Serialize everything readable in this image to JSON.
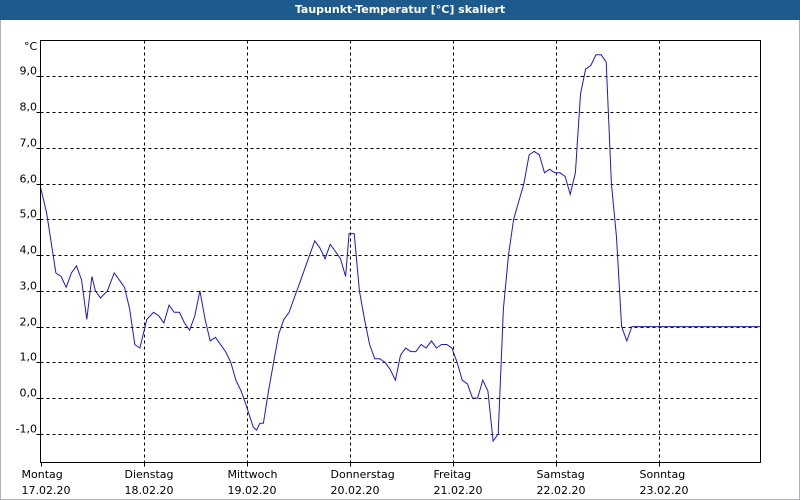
{
  "window": {
    "title": "Taupunkt-Temperatur [°C] skaliert"
  },
  "colors": {
    "title_bar": "#1d5b8e",
    "series_line": "#1a1ac8",
    "grid": "#000000"
  },
  "chart_data": {
    "type": "line",
    "title": "Taupunkt-Temperatur [°C] skaliert",
    "ylabel": "°C",
    "ylim": [
      -1.8,
      10.0
    ],
    "yticks": [
      {
        "value": 9.0,
        "label": "9,0"
      },
      {
        "value": 8.0,
        "label": "8,0"
      },
      {
        "value": 7.0,
        "label": "7,0"
      },
      {
        "value": 6.0,
        "label": "6,0"
      },
      {
        "value": 5.0,
        "label": "5,0"
      },
      {
        "value": 4.0,
        "label": "4,0"
      },
      {
        "value": 3.0,
        "label": "3,0"
      },
      {
        "value": 2.0,
        "label": "2,0"
      },
      {
        "value": 1.0,
        "label": "1,0"
      },
      {
        "value": 0.0,
        "label": "0,0"
      },
      {
        "value": -1.0,
        "label": "-1,0"
      }
    ],
    "xlim": [
      "17.02.20 00:00",
      "24.02.20 00:00"
    ],
    "xticks": [
      {
        "day": "Montag",
        "date": "17.02.20"
      },
      {
        "day": "Dienstag",
        "date": "18.02.20"
      },
      {
        "day": "Mittwoch",
        "date": "19.02.20"
      },
      {
        "day": "Donnerstag",
        "date": "20.02.20"
      },
      {
        "day": "Freitag",
        "date": "21.02.20"
      },
      {
        "day": "Samstag",
        "date": "22.02.20"
      },
      {
        "day": "Sonntag",
        "date": "23.02.20"
      }
    ],
    "grid": true,
    "series": [
      {
        "x": [
          "17.02.20 00:00",
          "17.02.20 01:24",
          "17.02.20 03:36",
          "17.02.20 04:48",
          "17.02.20 06:00",
          "17.02.20 07:12",
          "17.02.20 08:24",
          "17.02.20 09:36",
          "17.02.20 10:48",
          "17.02.20 12:00",
          "17.02.20 12:48",
          "17.02.20 14:00",
          "17.02.20 15:36",
          "17.02.20 17:12",
          "17.02.20 18:24",
          "17.02.20 19:36",
          "17.02.20 20:48",
          "17.02.20 22:00",
          "17.02.20 23:12",
          "18.02.20 00:48",
          "18.02.20 02:24",
          "18.02.20 03:36",
          "18.02.20 04:48",
          "18.02.20 06:00",
          "18.02.20 07:12",
          "18.02.20 08:24",
          "18.02.20 09:36",
          "18.02.20 10:48",
          "18.02.20 12:00",
          "18.02.20 13:12",
          "18.02.20 14:24",
          "18.02.20 15:36",
          "18.02.20 16:48",
          "18.02.20 18:00",
          "18.02.20 19:12",
          "18.02.20 20:24",
          "18.02.20 21:36",
          "18.02.20 22:48",
          "19.02.20 00:00",
          "19.02.20 00:48",
          "19.02.20 01:36",
          "19.02.20 02:24",
          "19.02.20 03:12",
          "19.02.20 04:00",
          "19.02.20 05:12",
          "19.02.20 06:24",
          "19.02.20 07:36",
          "19.02.20 08:48",
          "19.02.20 10:00",
          "19.02.20 11:12",
          "19.02.20 12:24",
          "19.02.20 13:36",
          "19.02.20 14:48",
          "19.02.20 16:00",
          "19.02.20 17:12",
          "19.02.20 18:24",
          "19.02.20 19:36",
          "19.02.20 20:48",
          "19.02.20 22:00",
          "19.02.20 23:12",
          "20.02.20 00:00",
          "20.02.20 01:12",
          "20.02.20 02:24",
          "20.02.20 03:36",
          "20.02.20 04:48",
          "20.02.20 06:00",
          "20.02.20 07:12",
          "20.02.20 08:24",
          "20.02.20 09:36",
          "20.02.20 10:48",
          "20.02.20 12:00",
          "20.02.20 13:12",
          "20.02.20 14:24",
          "20.02.20 15:36",
          "20.02.20 16:48",
          "20.02.20 18:00",
          "20.02.20 19:12",
          "20.02.20 20:24",
          "20.02.20 21:36",
          "20.02.20 22:48",
          "21.02.20 00:00",
          "21.02.20 01:12",
          "21.02.20 02:24",
          "21.02.20 03:36",
          "21.02.20 04:48",
          "21.02.20 06:00",
          "21.02.20 07:12",
          "21.02.20 08:24",
          "21.02.20 09:36",
          "21.02.20 10:48",
          "21.02.20 12:00",
          "21.02.20 13:12",
          "21.02.20 14:24",
          "21.02.20 15:36",
          "21.02.20 16:48",
          "21.02.20 18:00",
          "21.02.20 19:12",
          "21.02.20 20:24",
          "21.02.20 21:36",
          "21.02.20 22:48",
          "22.02.20 00:00",
          "22.02.20 01:12",
          "22.02.20 02:24",
          "22.02.20 03:36",
          "22.02.20 04:48",
          "22.02.20 06:00",
          "22.02.20 07:12",
          "22.02.20 08:24",
          "22.02.20 09:36",
          "22.02.20 10:48",
          "22.02.20 12:00",
          "22.02.20 13:12",
          "22.02.20 14:24",
          "22.02.20 15:36",
          "22.02.20 16:48",
          "22.02.20 18:00",
          "22.02.20 19:12",
          "22.02.20 20:24",
          "22.02.20 21:36",
          "22.02.20 22:48",
          "23.02.20 00:00",
          "23.02.20 01:12",
          "23.02.20 02:24",
          "23.02.20 03:36",
          "23.02.20 04:48",
          "23.02.20 06:00",
          "23.02.20 07:12",
          "23.02.20 08:24",
          "23.02.20 09:36",
          "23.02.20 10:48",
          "23.02.20 12:00",
          "23.02.20 13:12",
          "23.02.20 14:24",
          "23.02.20 15:36",
          "23.02.20 16:48",
          "23.02.20 18:00",
          "23.02.20 19:12",
          "23.02.20 20:24",
          "23.02.20 21:36",
          "23.02.20 22:48",
          "23.02.20 23:59"
        ],
        "y": [
          5.9,
          5.2,
          3.5,
          3.4,
          3.1,
          3.5,
          3.7,
          3.3,
          2.2,
          3.4,
          3.0,
          2.8,
          3.0,
          3.5,
          3.3,
          3.1,
          2.5,
          1.5,
          1.4,
          2.2,
          2.4,
          2.3,
          2.1,
          2.6,
          2.4,
          2.4,
          2.1,
          1.9,
          2.3,
          3.0,
          2.2,
          1.6,
          1.7,
          1.5,
          1.3,
          1.0,
          0.5,
          0.2,
          -0.2,
          -0.5,
          -0.8,
          -0.9,
          -0.7,
          -0.7,
          0.2,
          1.0,
          1.8,
          2.2,
          2.4,
          2.8,
          3.2,
          3.6,
          4.0,
          4.4,
          4.2,
          3.9,
          4.3,
          4.1,
          3.9,
          3.4,
          4.6,
          4.6,
          3.0,
          2.2,
          1.5,
          1.1,
          1.1,
          1.0,
          0.8,
          0.5,
          1.2,
          1.4,
          1.3,
          1.3,
          1.5,
          1.4,
          1.6,
          1.4,
          1.5,
          1.5,
          1.4,
          1.0,
          0.5,
          0.4,
          0.0,
          0.0,
          0.5,
          0.2,
          -1.2,
          -1.0,
          2.5,
          4.0,
          5.0,
          5.5,
          6.0,
          6.8,
          6.9,
          6.8,
          6.3,
          6.4,
          6.3,
          6.3,
          6.2,
          5.7,
          6.3,
          8.5,
          9.2,
          9.3,
          9.6,
          9.6,
          9.4,
          6.0,
          4.5,
          2.0,
          1.6,
          2.0,
          2.0,
          2.0,
          2.0,
          2.0,
          2.0,
          2.0,
          2.0,
          2.0,
          2.0,
          2.0,
          2.0,
          2.0,
          2.0,
          2.0,
          2.0,
          2.0,
          2.0,
          2.0,
          2.0,
          2.0,
          2.0,
          2.0,
          2.0,
          2.0,
          2.0
        ]
      }
    ]
  }
}
